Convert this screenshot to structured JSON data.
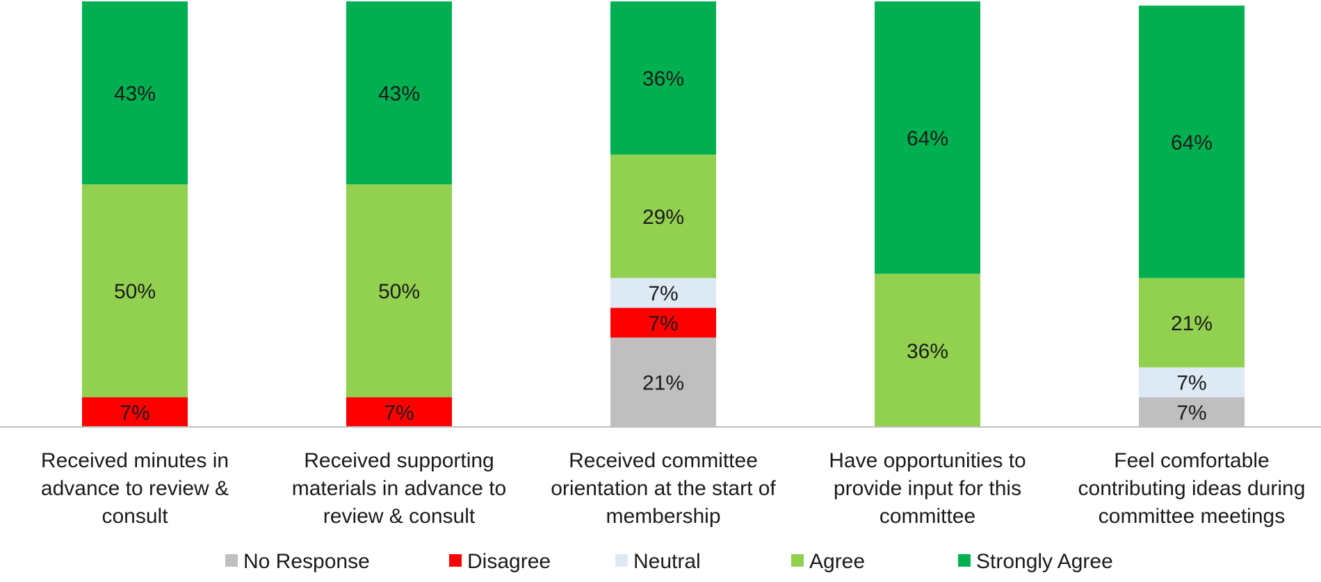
{
  "chart_data": {
    "type": "bar",
    "stacked": true,
    "categories": [
      [
        "Received minutes in",
        "advance to review &",
        "consult"
      ],
      [
        "Received supporting",
        "materials in advance to",
        "review & consult"
      ],
      [
        "Received committee",
        "orientation at the start of",
        "membership"
      ],
      [
        "Have opportunities to",
        "provide input for this",
        "committee"
      ],
      [
        "Feel comfortable",
        "contributing ideas during",
        "committee meetings"
      ]
    ],
    "series": [
      {
        "name": "No Response",
        "color": "#bfbfbf",
        "values": [
          0,
          0,
          21,
          0,
          7
        ],
        "labels": [
          "",
          "",
          "21%",
          "",
          "7%"
        ]
      },
      {
        "name": "Disagree",
        "color": "#ff0000",
        "values": [
          7,
          7,
          7,
          0,
          0
        ],
        "labels": [
          "7%",
          "7%",
          "7%",
          "",
          ""
        ]
      },
      {
        "name": "Neutral",
        "color": "#dde9f5",
        "values": [
          0,
          0,
          7,
          0,
          7
        ],
        "labels": [
          "",
          "",
          "7%",
          "",
          "7%"
        ]
      },
      {
        "name": "Agree",
        "color": "#92d050",
        "values": [
          50,
          50,
          29,
          36,
          21
        ],
        "labels": [
          "50%",
          "50%",
          "29%",
          "36%",
          "21%"
        ]
      },
      {
        "name": "Strongly Agree",
        "color": "#00b050",
        "values": [
          43,
          43,
          36,
          64,
          64
        ],
        "labels": [
          "43%",
          "43%",
          "36%",
          "64%",
          "64%"
        ]
      }
    ],
    "ylim": [
      0,
      100
    ],
    "legend_position": "bottom",
    "grid": false
  }
}
